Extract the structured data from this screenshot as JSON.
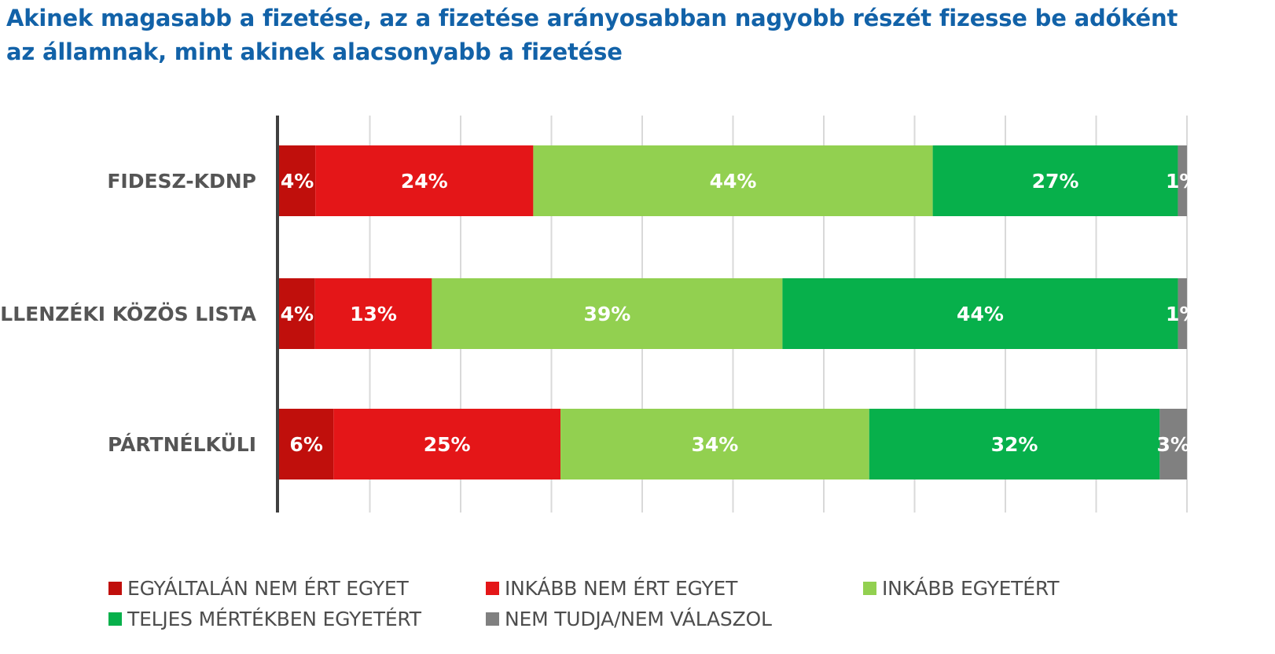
{
  "title": {
    "line1": "Akinek magasabb a fizetése, az a fizetése arányosabban nagyobb részét fizesse be adóként",
    "line2": "az államnak, mint akinek alacsonyabb a fizetése"
  },
  "chart_data": {
    "type": "bar",
    "orientation": "horizontal",
    "stacked": true,
    "title": "Akinek magasabb a fizetése, az a fizetése arányosabban nagyobb részét fizesse be adóként az államnak, mint akinek alacsonyabb a fizetése",
    "categories": [
      "FIDESZ-KDNP",
      "ELLENZÉKI KÖZÖS LISTA",
      "PÁRTNÉLKÜLI"
    ],
    "xlim": [
      0,
      100
    ],
    "grid": true,
    "legend_position": "bottom",
    "series": [
      {
        "name": "EGYÁLTALÁN NEM ÉRT EGYET",
        "color": "#c00f0c",
        "values": [
          4,
          4,
          6
        ],
        "labels": [
          "4%",
          "4%",
          "6%"
        ]
      },
      {
        "name": "INKÁBB NEM ÉRT EGYET",
        "color": "#e41618",
        "values": [
          24,
          13,
          25
        ],
        "labels": [
          "24%",
          "13%",
          "25%"
        ]
      },
      {
        "name": "INKÁBB EGYETÉRT",
        "color": "#92d050",
        "values": [
          44,
          39,
          34
        ],
        "labels": [
          "44%",
          "39%",
          "34%"
        ]
      },
      {
        "name": "TELJES MÉRTÉKBEN EGYETÉRT",
        "color": "#07b04b",
        "values": [
          27,
          44,
          32
        ],
        "labels": [
          "27%",
          "44%",
          "32%"
        ]
      },
      {
        "name": "NEM TUDJA/NEM VÁLASZOL",
        "color": "#808080",
        "values": [
          1,
          1,
          3
        ],
        "labels": [
          "1%",
          "1%",
          "3%"
        ]
      }
    ]
  }
}
